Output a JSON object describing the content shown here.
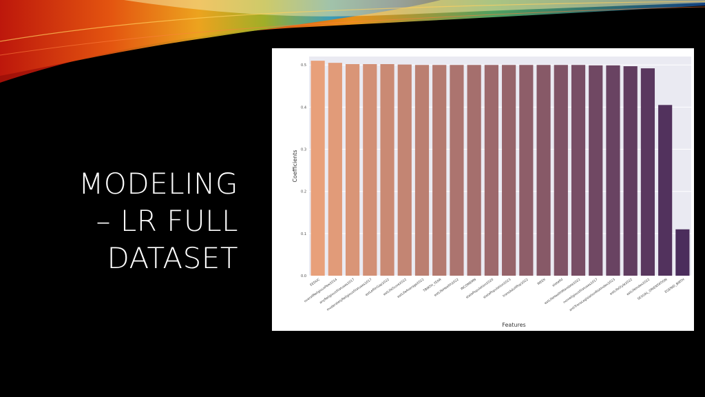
{
  "slide": {
    "title_lines": [
      "MODELING",
      "– LR FULL",
      "DATASET"
    ]
  },
  "colors": {
    "background": "#000000",
    "title_text": "#ffffff",
    "plot_background": "#eaeaf2",
    "bar_gradient_start": "#e8a07a",
    "bar_gradient_end": "#4b2d5c"
  },
  "chart_data": {
    "type": "bar",
    "title": "",
    "xlabel": "Features",
    "ylabel": "Coefficients",
    "ylim": [
      0,
      0.52
    ],
    "yticks": [
      "0.0",
      "0.1",
      "0.2",
      "0.3",
      "0.4",
      "0.5"
    ],
    "grid": true,
    "categories": [
      "EEDUC",
      "overallReligiousPew2014",
      "anyReligiousStatuses2017",
      "moderatelyReligiousStatuses2017",
      "estLeftInGap2022",
      "estLifeScore2022",
      "estLifeAverage2022",
      "TBIRTH_YEAR",
      "estLifeHealth2022",
      "INCOMEMN",
      "statePopulation2020",
      "statePopulation2023",
      "transAdultPop2022",
      "WEEK",
      "statefid",
      "estLifeHealthMandate2022",
      "nonreligiousStatuses2017",
      "antiTransLegislationRiskIndex2023",
      "estLifeStyle2022",
      "estLifeIndex2022",
      "SEXUAL_ORIENTATION",
      "EGENID_BIRTH"
    ],
    "values": [
      0.51,
      0.505,
      0.502,
      0.502,
      0.502,
      0.501,
      0.5,
      0.5,
      0.5,
      0.5,
      0.5,
      0.5,
      0.5,
      0.5,
      0.5,
      0.5,
      0.499,
      0.499,
      0.497,
      0.492,
      0.405,
      0.11
    ]
  }
}
